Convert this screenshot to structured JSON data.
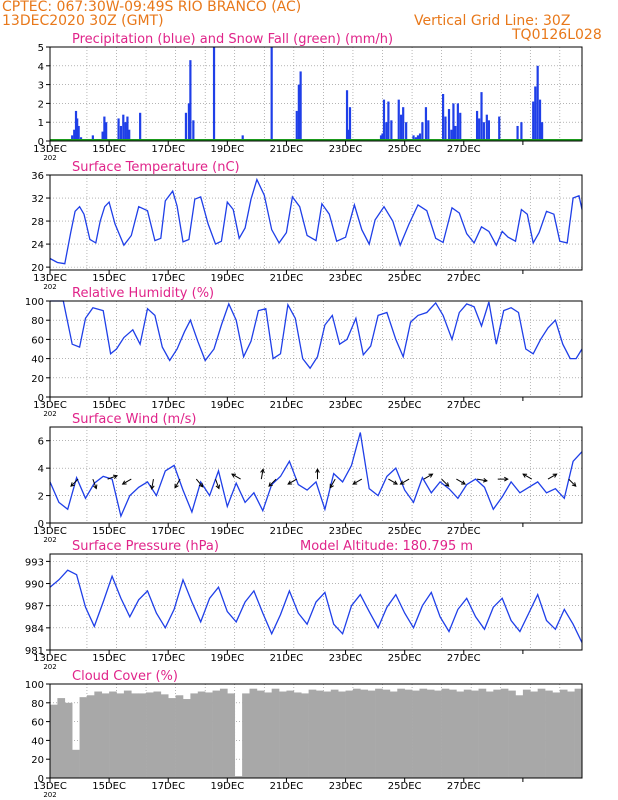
{
  "header": {
    "line1_left": "CPTEC:   067:30W-09:49S  RIO BRANCO (AC)",
    "line2_left": "13DEC2020 30Z (GMT)",
    "line2_right": "Vertical Grid Line: 30Z",
    "line3_right": "TQ0126L028"
  },
  "colors": {
    "title": "#e0248a",
    "line": "#1f3fe8",
    "snow": "#1a9a1a",
    "cloud": "#a8a8a8",
    "header": "#e8781a",
    "axis": "#000000",
    "grid": "#888888"
  },
  "x_axis": {
    "start": "13DEC",
    "end": "28DEC",
    "tick_labels": [
      "13DEC",
      "15DEC",
      "17DEC",
      "19DEC",
      "21DEC",
      "23DEC",
      "25DEC",
      "27DEC"
    ],
    "year_fragment": "202"
  },
  "chart_data": [
    {
      "type": "bar",
      "title": "Precipitation (blue) and Snow Fall (green) (mm/h)",
      "ylim": [
        0,
        5
      ],
      "yticks": [
        "0",
        "1",
        "2",
        "3",
        "4",
        "5"
      ],
      "series": [
        {
          "name": "Precipitation (blue)",
          "x": [
            0.75,
            0.82,
            0.88,
            0.92,
            0.97,
            1.05,
            1.45,
            1.78,
            1.84,
            1.9,
            2.32,
            2.4,
            2.48,
            2.55,
            2.62,
            2.68,
            3.05,
            4.6,
            4.7,
            4.75,
            4.85,
            5.55,
            6.52,
            7.5,
            8.35,
            8.42,
            8.48,
            10.05,
            10.1,
            10.15,
            11.2,
            11.25,
            11.3,
            11.38,
            11.45,
            11.55,
            11.8,
            11.88,
            11.95,
            12.05,
            12.3,
            12.38,
            12.45,
            12.52,
            12.6,
            12.72,
            12.8,
            13.3,
            13.38,
            13.5,
            13.58,
            13.65,
            13.72,
            13.8,
            13.88,
            14.45,
            14.52,
            14.6,
            14.68,
            14.78,
            14.85,
            15.2,
            15.82,
            15.95,
            16.35,
            16.42,
            16.5,
            16.58,
            16.65
          ],
          "values": [
            0.3,
            0.6,
            1.6,
            1.2,
            0.8,
            0.2,
            0.3,
            0.5,
            1.3,
            1.0,
            1.2,
            0.8,
            1.4,
            1.0,
            1.3,
            0.6,
            1.5,
            1.5,
            2.0,
            4.3,
            1.1,
            5.0,
            0.3,
            5.0,
            1.6,
            3.0,
            3.7,
            2.7,
            0.6,
            1.8,
            0.3,
            0.4,
            2.2,
            1.0,
            2.1,
            1.1,
            2.2,
            1.4,
            1.8,
            1.0,
            0.3,
            0.2,
            0.3,
            0.4,
            1.0,
            1.8,
            1.1,
            2.5,
            1.3,
            1.7,
            0.6,
            2.0,
            0.8,
            2.0,
            1.5,
            1.6,
            1.2,
            2.6,
            1.0,
            1.4,
            1.1,
            1.3,
            0.8,
            1.0,
            2.1,
            2.9,
            4.0,
            2.2,
            1.0
          ]
        },
        {
          "name": "Snow Fall (green)",
          "values": [
            0,
            0,
            0,
            0,
            0,
            0,
            0,
            0,
            0,
            0,
            0,
            0,
            0,
            0,
            0,
            0
          ]
        }
      ]
    },
    {
      "type": "line",
      "title": "Surface Temperature (nC)",
      "ylim": [
        19.5,
        36
      ],
      "yticks": [
        "20",
        "24",
        "28",
        "32",
        "36"
      ],
      "series": [
        {
          "name": "Surface Temperature",
          "x": [
            0,
            0.25,
            0.5,
            0.7,
            0.85,
            1.0,
            1.15,
            1.35,
            1.55,
            1.7,
            1.85,
            2.0,
            2.2,
            2.5,
            2.75,
            3.0,
            3.3,
            3.55,
            3.75,
            3.9,
            4.15,
            4.3,
            4.5,
            4.7,
            4.9,
            5.1,
            5.35,
            5.6,
            5.8,
            6.0,
            6.2,
            6.4,
            6.6,
            6.8,
            7.0,
            7.25,
            7.5,
            7.75,
            8.0,
            8.2,
            8.45,
            8.7,
            9.0,
            9.2,
            9.45,
            9.7,
            10.0,
            10.3,
            10.55,
            10.8,
            11.0,
            11.3,
            11.6,
            11.85,
            12.15,
            12.45,
            12.75,
            13.05,
            13.3,
            13.6,
            13.85,
            14.1,
            14.35,
            14.6,
            14.85,
            15.1,
            15.3,
            15.5,
            15.75,
            15.95,
            16.15,
            16.35,
            16.55,
            16.8,
            17.05,
            17.25,
            17.5,
            17.7,
            17.9,
            18.0
          ],
          "values": [
            21.5,
            20.8,
            20.6,
            26.0,
            29.7,
            30.5,
            29.2,
            24.8,
            24.2,
            28.0,
            30.5,
            31.3,
            27.5,
            23.8,
            25.5,
            30.5,
            29.8,
            24.6,
            25.0,
            31.5,
            33.2,
            30.6,
            24.4,
            24.8,
            31.8,
            32.2,
            27.5,
            24.0,
            24.5,
            31.3,
            30.0,
            25.0,
            26.8,
            31.8,
            35.2,
            32.5,
            26.5,
            24.2,
            26.0,
            32.2,
            30.5,
            25.5,
            24.6,
            31.0,
            29.2,
            24.5,
            25.2,
            30.8,
            26.5,
            24.0,
            28.2,
            30.5,
            28.0,
            23.8,
            27.5,
            30.8,
            29.8,
            25.0,
            24.3,
            30.3,
            29.4,
            25.8,
            24.2,
            27.0,
            26.2,
            23.8,
            26.2,
            25.2,
            24.5,
            30.0,
            29.2,
            24.2,
            26.0,
            29.7,
            29.2,
            24.5,
            24.2,
            32.0,
            32.4,
            30.0
          ]
        }
      ]
    },
    {
      "type": "line",
      "title": "Relative Humidity (%)",
      "ylim": [
        0,
        100
      ],
      "yticks": [
        "0",
        "20",
        "40",
        "60",
        "80",
        "100"
      ],
      "series": [
        {
          "name": "Relative Humidity",
          "x": [
            0,
            0.2,
            0.45,
            0.75,
            1.0,
            1.2,
            1.45,
            1.8,
            2.05,
            2.25,
            2.5,
            2.8,
            3.05,
            3.3,
            3.55,
            3.8,
            4.05,
            4.3,
            4.55,
            4.75,
            5.0,
            5.25,
            5.55,
            5.8,
            6.05,
            6.3,
            6.55,
            6.8,
            7.05,
            7.3,
            7.55,
            7.8,
            8.05,
            8.3,
            8.55,
            8.8,
            9.05,
            9.3,
            9.55,
            9.8,
            10.05,
            10.35,
            10.6,
            10.85,
            11.1,
            11.4,
            11.7,
            11.95,
            12.2,
            12.45,
            12.75,
            13.05,
            13.3,
            13.6,
            13.85,
            14.1,
            14.35,
            14.6,
            14.85,
            15.1,
            15.35,
            15.6,
            15.85,
            16.1,
            16.35,
            16.6,
            16.85,
            17.1,
            17.35,
            17.6,
            17.8,
            18.0
          ],
          "values": [
            100,
            100,
            100,
            55,
            52,
            82,
            93,
            90,
            45,
            50,
            62,
            70,
            55,
            92,
            85,
            52,
            38,
            50,
            68,
            80,
            58,
            38,
            50,
            75,
            97,
            80,
            42,
            58,
            90,
            92,
            40,
            45,
            96,
            82,
            40,
            30,
            42,
            75,
            85,
            55,
            60,
            82,
            44,
            53,
            85,
            88,
            60,
            42,
            78,
            85,
            88,
            98,
            85,
            60,
            88,
            97,
            94,
            74,
            99,
            55,
            90,
            93,
            88,
            50,
            45,
            60,
            72,
            80,
            55,
            40,
            40,
            50
          ]
        }
      ]
    },
    {
      "type": "line",
      "title": "Surface Wind (m/s)",
      "ylim": [
        0,
        7
      ],
      "yticks": [
        "0",
        "2",
        "4",
        "6"
      ],
      "series": [
        {
          "name": "Surface Wind",
          "x": [
            0,
            0.3,
            0.6,
            0.9,
            1.2,
            1.5,
            1.8,
            2.1,
            2.4,
            2.7,
            3.0,
            3.3,
            3.6,
            3.9,
            4.2,
            4.5,
            4.8,
            5.1,
            5.4,
            5.7,
            6.0,
            6.3,
            6.6,
            6.9,
            7.2,
            7.5,
            7.8,
            8.1,
            8.4,
            8.7,
            9.0,
            9.3,
            9.6,
            9.9,
            10.2,
            10.5,
            10.8,
            11.1,
            11.4,
            11.7,
            12.0,
            12.3,
            12.6,
            12.9,
            13.2,
            13.5,
            13.8,
            14.1,
            14.4,
            14.7,
            15.0,
            15.3,
            15.6,
            15.9,
            16.2,
            16.5,
            16.8,
            17.1,
            17.4,
            17.7,
            18.0
          ],
          "values": [
            3.0,
            1.5,
            1.0,
            3.3,
            1.8,
            2.9,
            3.4,
            3.2,
            0.5,
            2.0,
            2.6,
            3.0,
            2.0,
            3.8,
            4.2,
            2.4,
            0.8,
            3.0,
            2.0,
            3.8,
            1.2,
            2.9,
            1.5,
            2.2,
            0.9,
            2.8,
            3.4,
            4.5,
            2.8,
            2.4,
            3.0,
            1.0,
            3.6,
            3.0,
            4.2,
            6.6,
            2.5,
            2.0,
            3.4,
            4.0,
            2.4,
            1.5,
            3.3,
            2.2,
            3.0,
            2.5,
            1.8,
            2.8,
            3.2,
            2.6,
            1.0,
            1.9,
            3.0,
            2.2,
            2.6,
            3.0,
            2.2,
            2.5,
            1.8,
            4.5,
            5.2
          ]
        }
      ],
      "wind_barbs": [
        {
          "x": 0.95,
          "dir_deg": 315
        },
        {
          "x": 1.45,
          "dir_deg": 20
        },
        {
          "x": 1.95,
          "dir_deg": 110
        },
        {
          "x": 2.75,
          "dir_deg": 300
        },
        {
          "x": 3.5,
          "dir_deg": 350
        },
        {
          "x": 4.4,
          "dir_deg": 330
        },
        {
          "x": 4.95,
          "dir_deg": 40
        },
        {
          "x": 5.6,
          "dir_deg": 20
        },
        {
          "x": 6.45,
          "dir_deg": 240
        },
        {
          "x": 7.15,
          "dir_deg": 170
        },
        {
          "x": 7.65,
          "dir_deg": 315
        },
        {
          "x": 8.35,
          "dir_deg": 300
        },
        {
          "x": 9.05,
          "dir_deg": 180
        },
        {
          "x": 9.65,
          "dir_deg": 330
        },
        {
          "x": 10.55,
          "dir_deg": 300
        },
        {
          "x": 11.45,
          "dir_deg": 60
        },
        {
          "x": 12.15,
          "dir_deg": 300
        },
        {
          "x": 12.65,
          "dir_deg": 120
        },
        {
          "x": 13.25,
          "dir_deg": 45
        },
        {
          "x": 13.75,
          "dir_deg": 60
        },
        {
          "x": 14.45,
          "dir_deg": 80
        },
        {
          "x": 15.15,
          "dir_deg": 90
        },
        {
          "x": 16.3,
          "dir_deg": 240
        },
        {
          "x": 16.85,
          "dir_deg": 120
        },
        {
          "x": 17.55,
          "dir_deg": 45
        }
      ]
    },
    {
      "type": "line",
      "title": "Surface Pressure (hPa)",
      "annotation": "Model Altitude: 180.795  m",
      "ylim": [
        981,
        994
      ],
      "yticks": [
        "981",
        "984",
        "987",
        "990",
        "993"
      ],
      "series": [
        {
          "name": "Surface Pressure",
          "x": [
            0,
            0.3,
            0.6,
            0.9,
            1.2,
            1.5,
            1.8,
            2.1,
            2.4,
            2.7,
            3.0,
            3.3,
            3.6,
            3.9,
            4.2,
            4.5,
            4.8,
            5.1,
            5.4,
            5.7,
            6.0,
            6.3,
            6.6,
            6.9,
            7.2,
            7.5,
            7.8,
            8.1,
            8.4,
            8.7,
            9.0,
            9.3,
            9.6,
            9.9,
            10.2,
            10.5,
            10.8,
            11.1,
            11.4,
            11.7,
            12.0,
            12.3,
            12.6,
            12.9,
            13.2,
            13.5,
            13.8,
            14.1,
            14.4,
            14.7,
            15.0,
            15.3,
            15.6,
            15.9,
            16.2,
            16.5,
            16.8,
            17.1,
            17.4,
            17.7,
            18.0
          ],
          "values": [
            989.5,
            990.5,
            991.8,
            991.2,
            986.8,
            984.2,
            987.5,
            991.0,
            988.0,
            985.5,
            987.8,
            989.0,
            986.0,
            984.0,
            986.5,
            990.5,
            987.5,
            984.8,
            988.0,
            989.5,
            986.2,
            984.8,
            987.5,
            989.0,
            986.0,
            983.2,
            985.8,
            989.0,
            986.0,
            984.5,
            987.5,
            988.8,
            984.5,
            983.2,
            987.0,
            988.5,
            986.2,
            984.0,
            986.8,
            988.5,
            986.0,
            984.0,
            987.0,
            988.8,
            985.5,
            983.5,
            986.5,
            988.0,
            985.5,
            983.8,
            986.8,
            988.0,
            985.0,
            983.5,
            986.0,
            988.5,
            985.0,
            983.8,
            986.5,
            984.5,
            982.0
          ]
        }
      ]
    },
    {
      "type": "bar",
      "title": "Cloud Cover (%)",
      "ylim": [
        0,
        100
      ],
      "yticks": [
        "0",
        "20",
        "40",
        "60",
        "80",
        "100"
      ],
      "series": [
        {
          "name": "Cloud Cover",
          "x": [
            0,
            0.25,
            0.5,
            0.75,
            1.0,
            1.25,
            1.5,
            1.75,
            2.0,
            2.25,
            2.5,
            2.75,
            3.0,
            3.25,
            3.5,
            3.75,
            4.0,
            4.25,
            4.5,
            4.75,
            5.0,
            5.25,
            5.5,
            5.75,
            6.0,
            6.25,
            6.5,
            6.75,
            7.0,
            7.25,
            7.5,
            7.75,
            8.0,
            8.25,
            8.5,
            8.75,
            9.0,
            9.25,
            9.5,
            9.75,
            10.0,
            10.25,
            10.5,
            10.75,
            11.0,
            11.25,
            11.5,
            11.75,
            12.0,
            12.25,
            12.5,
            12.75,
            13.0,
            13.25,
            13.5,
            13.75,
            14.0,
            14.25,
            14.5,
            14.75,
            15.0,
            15.25,
            15.5,
            15.75,
            16.0,
            16.25,
            16.5,
            16.75,
            17.0,
            17.25,
            17.5,
            17.75
          ],
          "values": [
            78,
            85,
            80,
            30,
            86,
            88,
            92,
            90,
            92,
            90,
            93,
            90,
            90,
            91,
            92,
            89,
            85,
            88,
            84,
            90,
            92,
            91,
            93,
            95,
            90,
            2,
            90,
            95,
            93,
            91,
            95,
            92,
            93,
            91,
            90,
            94,
            93,
            92,
            94,
            92,
            93,
            95,
            94,
            93,
            95,
            94,
            92,
            95,
            94,
            93,
            95,
            94,
            93,
            95,
            94,
            92,
            94,
            93,
            95,
            92,
            94,
            95,
            93,
            88,
            94,
            92,
            95,
            93,
            91,
            94,
            92,
            95
          ]
        }
      ]
    }
  ]
}
